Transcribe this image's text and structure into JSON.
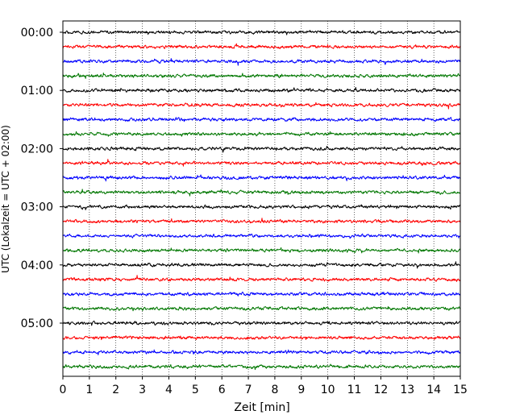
{
  "chart_data": {
    "type": "line",
    "title": "",
    "xlabel": "Zeit  [min]",
    "ylabel": "UTC (Lokalzeit = UTC + 02:00)",
    "xlim": [
      0,
      15
    ],
    "x_ticks": [
      "0",
      "1",
      "2",
      "3",
      "4",
      "5",
      "6",
      "7",
      "8",
      "9",
      "10",
      "11",
      "12",
      "13",
      "14",
      "15"
    ],
    "y_tick_labels": [
      "00:00",
      "01:00",
      "02:00",
      "03:00",
      "04:00",
      "05:00"
    ],
    "grid": "vertical dotted lines at each minute",
    "trace_interval_min": 15,
    "trace_colors": [
      "#000000",
      "#ff0000",
      "#0000ff",
      "#007700"
    ],
    "series": [
      {
        "start": "00:00",
        "color": "#000000"
      },
      {
        "start": "00:15",
        "color": "#ff0000"
      },
      {
        "start": "00:30",
        "color": "#0000ff"
      },
      {
        "start": "00:45",
        "color": "#007700"
      },
      {
        "start": "01:00",
        "color": "#000000"
      },
      {
        "start": "01:15",
        "color": "#ff0000"
      },
      {
        "start": "01:30",
        "color": "#0000ff"
      },
      {
        "start": "01:45",
        "color": "#007700"
      },
      {
        "start": "02:00",
        "color": "#000000"
      },
      {
        "start": "02:15",
        "color": "#ff0000"
      },
      {
        "start": "02:30",
        "color": "#0000ff"
      },
      {
        "start": "02:45",
        "color": "#007700"
      },
      {
        "start": "03:00",
        "color": "#000000"
      },
      {
        "start": "03:15",
        "color": "#ff0000"
      },
      {
        "start": "03:30",
        "color": "#0000ff"
      },
      {
        "start": "03:45",
        "color": "#007700"
      },
      {
        "start": "04:00",
        "color": "#000000"
      },
      {
        "start": "04:15",
        "color": "#ff0000"
      },
      {
        "start": "04:30",
        "color": "#0000ff"
      },
      {
        "start": "04:45",
        "color": "#007700"
      },
      {
        "start": "05:00",
        "color": "#000000"
      },
      {
        "start": "05:15",
        "color": "#ff0000"
      },
      {
        "start": "05:30",
        "color": "#0000ff"
      },
      {
        "start": "05:45",
        "color": "#007700"
      }
    ]
  }
}
